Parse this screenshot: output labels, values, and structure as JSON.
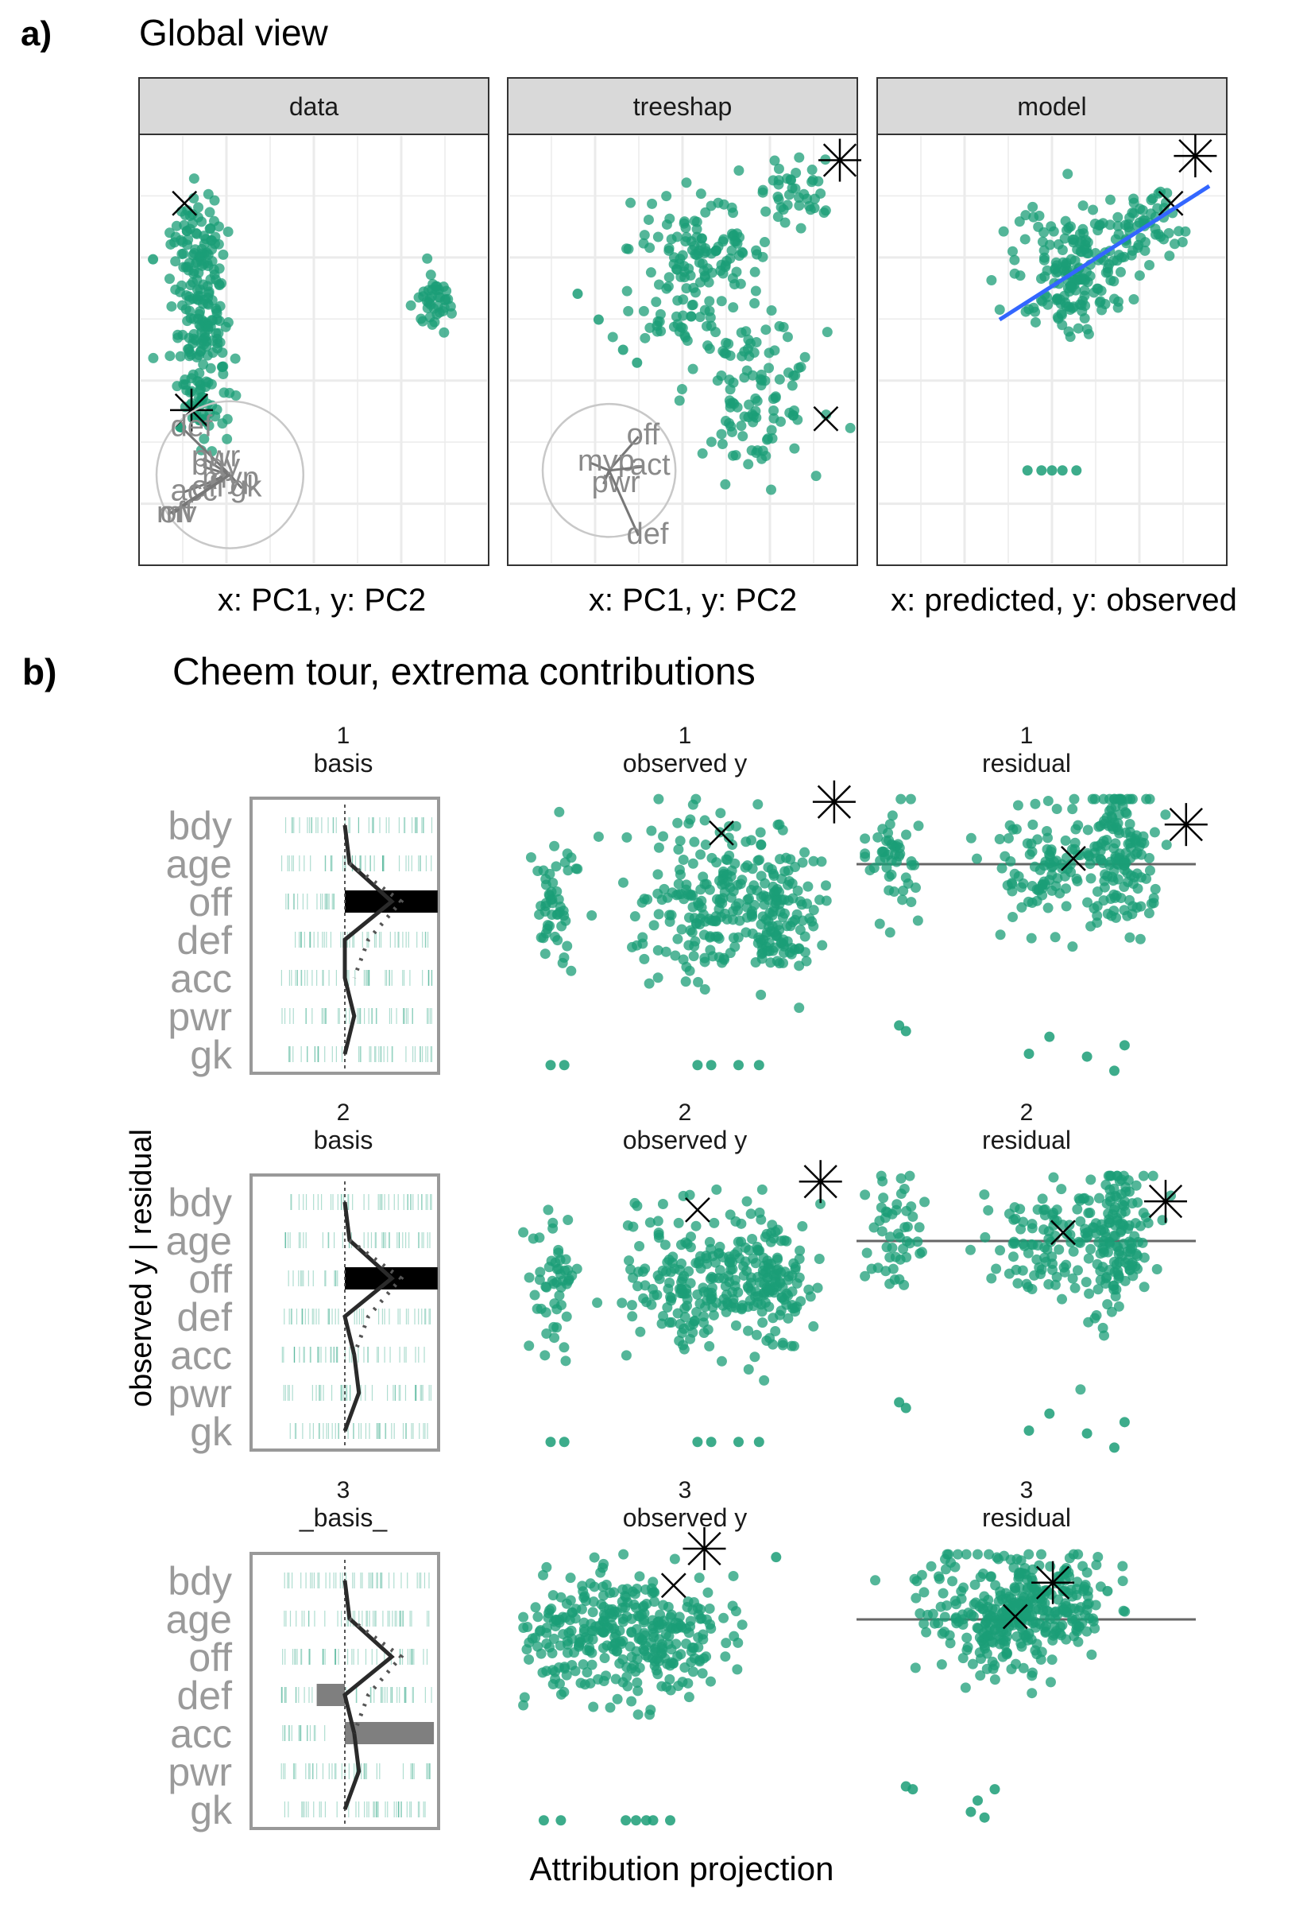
{
  "figure": {
    "panel_a": {
      "letter": "a)",
      "title": "Global view"
    },
    "panel_b": {
      "letter": "b)",
      "title": "Cheem tour, extrema contributions",
      "ylabel": "observed y | residual",
      "xlabel": "Attribution projection"
    }
  },
  "colors": {
    "points": "#1b9e77",
    "strip": "#d9d9d9",
    "grid": "#ebebeb",
    "axes_text": "#9a9a9a",
    "fit_line": "#3366ff",
    "ref_line": "#666666"
  },
  "chart_data": [
    {
      "type": "scatter",
      "title": "Global view",
      "facets": [
        {
          "strip": "data",
          "xlabel": "x: PC1, y: PC2",
          "clusters": [
            {
              "cx": 0.17,
              "cy": 0.26,
              "sx": 0.04,
              "sy": 0.06,
              "n": 90
            },
            {
              "cx": 0.18,
              "cy": 0.45,
              "sx": 0.04,
              "sy": 0.06,
              "n": 90
            },
            {
              "cx": 0.18,
              "cy": 0.62,
              "sx": 0.035,
              "sy": 0.05,
              "n": 60
            },
            {
              "cx": 0.85,
              "cy": 0.39,
              "sx": 0.025,
              "sy": 0.03,
              "n": 40
            }
          ],
          "extras": [
            {
              "x": 0.04,
              "y": 0.29
            },
            {
              "x": 0.12,
              "y": 0.68
            }
          ],
          "markers": [
            {
              "shape": "x",
              "x": 0.13,
              "y": 0.16
            },
            {
              "shape": "asterisk",
              "x": 0.15,
              "y": 0.64
            }
          ],
          "axes_circle": {
            "cx": 0.26,
            "cy": 0.79,
            "r": 0.21,
            "labels": [
              {
                "t": "def",
                "x": 0.09,
                "y": 0.7
              },
              {
                "t": "pwr",
                "x": 0.15,
                "y": 0.77
              },
              {
                "t": "bdy",
                "x": 0.15,
                "y": 0.79
              },
              {
                "t": "acc",
                "x": 0.09,
                "y": 0.85
              },
              {
                "t": "off",
                "x": 0.15,
                "y": 0.84
              },
              {
                "t": "gk",
                "x": 0.26,
                "y": 0.84
              },
              {
                "t": "myp",
                "x": 0.18,
                "y": 0.82
              },
              {
                "t": "mv",
                "x": 0.05,
                "y": 0.9
              },
              {
                "t": "off",
                "x": 0.06,
                "y": 0.9
              }
            ]
          }
        },
        {
          "strip": "treeshap",
          "xlabel": "x: PC1, y: PC2",
          "clusters": [
            {
              "cx": 0.55,
              "cy": 0.27,
              "sx": 0.1,
              "sy": 0.06,
              "n": 120
            },
            {
              "cx": 0.82,
              "cy": 0.12,
              "sx": 0.06,
              "sy": 0.04,
              "n": 40
            },
            {
              "cx": 0.5,
              "cy": 0.44,
              "sx": 0.07,
              "sy": 0.03,
              "n": 30
            },
            {
              "cx": 0.7,
              "cy": 0.61,
              "sx": 0.09,
              "sy": 0.09,
              "n": 110
            }
          ],
          "extras": [
            {
              "x": 0.2,
              "y": 0.37
            },
            {
              "x": 0.26,
              "y": 0.43
            },
            {
              "x": 0.33,
              "y": 0.5
            },
            {
              "x": 0.37,
              "y": 0.53
            }
          ],
          "markers": [
            {
              "shape": "asterisk",
              "x": 0.95,
              "y": 0.06
            },
            {
              "shape": "x",
              "x": 0.91,
              "y": 0.66
            }
          ],
          "axes_circle": {
            "cx": 0.29,
            "cy": 0.78,
            "r": 0.19,
            "labels": [
              {
                "t": "off",
                "x": 0.34,
                "y": 0.72
              },
              {
                "t": "myp",
                "x": 0.2,
                "y": 0.78
              },
              {
                "t": "act",
                "x": 0.35,
                "y": 0.79
              },
              {
                "t": "pwr",
                "x": 0.24,
                "y": 0.83
              },
              {
                "t": "def",
                "x": 0.34,
                "y": 0.95
              }
            ]
          }
        },
        {
          "strip": "model",
          "xlabel": "x: predicted, y: observed",
          "clusters": [
            {
              "cx": 0.56,
              "cy": 0.32,
              "sx": 0.08,
              "sy": 0.08,
              "n": 170
            },
            {
              "cx": 0.74,
              "cy": 0.21,
              "sx": 0.06,
              "sy": 0.04,
              "n": 60
            }
          ],
          "extras": [
            {
              "x": 0.43,
              "y": 0.78
            },
            {
              "x": 0.47,
              "y": 0.78
            },
            {
              "x": 0.5,
              "y": 0.78
            },
            {
              "x": 0.53,
              "y": 0.78
            },
            {
              "x": 0.57,
              "y": 0.78
            }
          ],
          "markers": [
            {
              "shape": "asterisk",
              "x": 0.91,
              "y": 0.05
            },
            {
              "shape": "x",
              "x": 0.84,
              "y": 0.16
            }
          ],
          "fit_line": [
            [
              0.35,
              0.43
            ],
            [
              0.95,
              0.12
            ]
          ]
        }
      ]
    },
    {
      "type": "scatter",
      "title": "Cheem tour, extrema contributions",
      "variables": [
        "bdy",
        "age",
        "off",
        "def",
        "acc",
        "pwr",
        "gk"
      ],
      "frames": [
        {
          "id": "1",
          "basis_label": "basis",
          "obs_label": "observed y",
          "res_label": "residual",
          "basis": [
            0.02,
            0.02,
            0.99,
            0.0,
            0.0,
            0.0,
            0.0
          ],
          "path": [
            [
              0.0,
              0.02
            ],
            [
              0.05,
              0.05
            ],
            [
              0.5,
              0.1
            ],
            [
              0.0,
              0.05
            ],
            [
              0.0,
              0.0
            ],
            [
              0.1,
              0.0
            ],
            [
              0.0,
              0.0
            ]
          ],
          "dotted": [
            [
              0.05,
              0.1
            ],
            [
              0.6,
              0.2
            ],
            [
              0.25,
              0.15
            ],
            [
              0.1,
              0.05
            ]
          ],
          "obs": {
            "clusters": [
              {
                "cx": 0.11,
                "cy": 0.38,
                "sx": 0.03,
                "sy": 0.12,
                "n": 50
              },
              {
                "cx": 0.58,
                "cy": 0.38,
                "sx": 0.12,
                "sy": 0.13,
                "n": 200
              },
              {
                "cx": 0.77,
                "cy": 0.42,
                "sx": 0.05,
                "sy": 0.13,
                "n": 110
              }
            ],
            "extras": [
              {
                "x": 0.1,
                "y": 0.96
              },
              {
                "x": 0.14,
                "y": 0.96
              },
              {
                "x": 0.53,
                "y": 0.96
              },
              {
                "x": 0.57,
                "y": 0.96
              },
              {
                "x": 0.65,
                "y": 0.96
              },
              {
                "x": 0.71,
                "y": 0.96
              }
            ],
            "markers": [
              {
                "shape": "asterisk",
                "x": 0.93,
                "y": 0.03
              },
              {
                "shape": "x",
                "x": 0.6,
                "y": 0.14
              }
            ]
          },
          "res": {
            "ref_y": 0.25,
            "clusters": [
              {
                "cx": 0.11,
                "cy": 0.22,
                "sx": 0.04,
                "sy": 0.1,
                "n": 50
              },
              {
                "cx": 0.55,
                "cy": 0.25,
                "sx": 0.09,
                "sy": 0.1,
                "n": 100
              },
              {
                "cx": 0.76,
                "cy": 0.22,
                "sx": 0.05,
                "sy": 0.14,
                "n": 140
              }
            ],
            "extras": [
              {
                "x": 0.14,
                "y": 0.84
              },
              {
                "x": 0.12,
                "y": 0.82
              },
              {
                "x": 0.56,
                "y": 0.86
              },
              {
                "x": 0.5,
                "y": 0.92
              },
              {
                "x": 0.67,
                "y": 0.93
              },
              {
                "x": 0.78,
                "y": 0.89
              },
              {
                "x": 0.75,
                "y": 0.98
              }
            ],
            "markers": [
              {
                "shape": "asterisk",
                "x": 0.96,
                "y": 0.11
              },
              {
                "shape": "x",
                "x": 0.63,
                "y": 0.23
              }
            ]
          }
        },
        {
          "id": "2",
          "basis_label": "basis",
          "obs_label": "observed y",
          "res_label": "residual",
          "basis": [
            0.02,
            0.02,
            0.99,
            0.0,
            0.0,
            0.0,
            0.0
          ],
          "path": [
            [
              0.0,
              0.02
            ],
            [
              0.05,
              0.05
            ],
            [
              0.5,
              0.1
            ],
            [
              0.0,
              0.05
            ],
            [
              0.1,
              0.0
            ],
            [
              0.15,
              0.0
            ],
            [
              0.0,
              0.0
            ]
          ],
          "dotted": [
            [
              0.05,
              0.1
            ],
            [
              0.6,
              0.2
            ],
            [
              0.25,
              0.15
            ],
            [
              0.1,
              0.05
            ]
          ],
          "obs": {
            "clusters": [
              {
                "cx": 0.11,
                "cy": 0.4,
                "sx": 0.03,
                "sy": 0.12,
                "n": 50
              },
              {
                "cx": 0.55,
                "cy": 0.4,
                "sx": 0.12,
                "sy": 0.13,
                "n": 200
              },
              {
                "cx": 0.75,
                "cy": 0.42,
                "sx": 0.05,
                "sy": 0.13,
                "n": 110
              }
            ],
            "extras": [
              {
                "x": 0.1,
                "y": 0.96
              },
              {
                "x": 0.14,
                "y": 0.96
              },
              {
                "x": 0.53,
                "y": 0.96
              },
              {
                "x": 0.57,
                "y": 0.96
              },
              {
                "x": 0.65,
                "y": 0.96
              },
              {
                "x": 0.71,
                "y": 0.96
              }
            ],
            "markers": [
              {
                "shape": "asterisk",
                "x": 0.89,
                "y": 0.04
              },
              {
                "shape": "x",
                "x": 0.53,
                "y": 0.14
              }
            ]
          },
          "res": {
            "ref_y": 0.25,
            "clusters": [
              {
                "cx": 0.11,
                "cy": 0.22,
                "sx": 0.04,
                "sy": 0.1,
                "n": 50
              },
              {
                "cx": 0.55,
                "cy": 0.25,
                "sx": 0.09,
                "sy": 0.1,
                "n": 100
              },
              {
                "cx": 0.75,
                "cy": 0.24,
                "sx": 0.05,
                "sy": 0.15,
                "n": 140
              }
            ],
            "extras": [
              {
                "x": 0.14,
                "y": 0.84
              },
              {
                "x": 0.12,
                "y": 0.82
              },
              {
                "x": 0.56,
                "y": 0.86
              },
              {
                "x": 0.5,
                "y": 0.92
              },
              {
                "x": 0.67,
                "y": 0.93
              },
              {
                "x": 0.78,
                "y": 0.89
              },
              {
                "x": 0.75,
                "y": 0.98
              }
            ],
            "markers": [
              {
                "shape": "asterisk",
                "x": 0.9,
                "y": 0.11
              },
              {
                "shape": "x",
                "x": 0.6,
                "y": 0.22
              }
            ]
          }
        },
        {
          "id": "3",
          "basis_label": "_basis_",
          "obs_label": "observed y",
          "res_label": "residual",
          "basis": [
            0.02,
            0.02,
            0.0,
            -0.3,
            0.95,
            0.0,
            0.0
          ],
          "path": [
            [
              0.0,
              0.02
            ],
            [
              0.05,
              0.05
            ],
            [
              0.5,
              0.45
            ],
            [
              0.0,
              0.05
            ],
            [
              0.1,
              0.0
            ],
            [
              0.15,
              0.0
            ],
            [
              0.0,
              0.0
            ]
          ],
          "dotted": [
            [
              0.05,
              0.1
            ],
            [
              0.6,
              0.2
            ],
            [
              0.25,
              0.15
            ],
            [
              0.1,
              0.05
            ]
          ],
          "obs": {
            "clusters": [
              {
                "cx": 0.3,
                "cy": 0.3,
                "sx": 0.14,
                "sy": 0.12,
                "n": 180
              },
              {
                "cx": 0.4,
                "cy": 0.34,
                "sx": 0.1,
                "sy": 0.1,
                "n": 120
              },
              {
                "cx": 0.15,
                "cy": 0.3,
                "sx": 0.05,
                "sy": 0.1,
                "n": 40
              }
            ],
            "extras": [
              {
                "x": 0.08,
                "y": 0.96
              },
              {
                "x": 0.13,
                "y": 0.96
              },
              {
                "x": 0.32,
                "y": 0.96
              },
              {
                "x": 0.35,
                "y": 0.96
              },
              {
                "x": 0.38,
                "y": 0.96
              },
              {
                "x": 0.4,
                "y": 0.96
              },
              {
                "x": 0.45,
                "y": 0.96
              },
              {
                "x": 0.76,
                "y": 0.03
              }
            ],
            "markers": [
              {
                "shape": "asterisk",
                "x": 0.55,
                "y": 0.0
              },
              {
                "shape": "x",
                "x": 0.46,
                "y": 0.13
              }
            ]
          },
          "res": {
            "ref_y": 0.25,
            "clusters": [
              {
                "cx": 0.45,
                "cy": 0.2,
                "sx": 0.14,
                "sy": 0.1,
                "n": 180
              },
              {
                "cx": 0.55,
                "cy": 0.18,
                "sx": 0.1,
                "sy": 0.1,
                "n": 120
              },
              {
                "cx": 0.4,
                "cy": 0.32,
                "sx": 0.08,
                "sy": 0.08,
                "n": 60
              }
            ],
            "extras": [
              {
                "x": 0.14,
                "y": 0.84
              },
              {
                "x": 0.16,
                "y": 0.85
              },
              {
                "x": 0.4,
                "y": 0.85
              },
              {
                "x": 0.35,
                "y": 0.89
              },
              {
                "x": 0.37,
                "y": 0.95
              },
              {
                "x": 0.33,
                "y": 0.93
              },
              {
                "x": 0.5,
                "y": 0.3
              },
              {
                "x": 0.6,
                "y": 0.15
              },
              {
                "x": 0.73,
                "y": 0.15
              }
            ],
            "markers": [
              {
                "shape": "asterisk",
                "x": 0.57,
                "y": 0.12
              },
              {
                "shape": "x",
                "x": 0.46,
                "y": 0.24
              }
            ]
          }
        }
      ]
    }
  ]
}
